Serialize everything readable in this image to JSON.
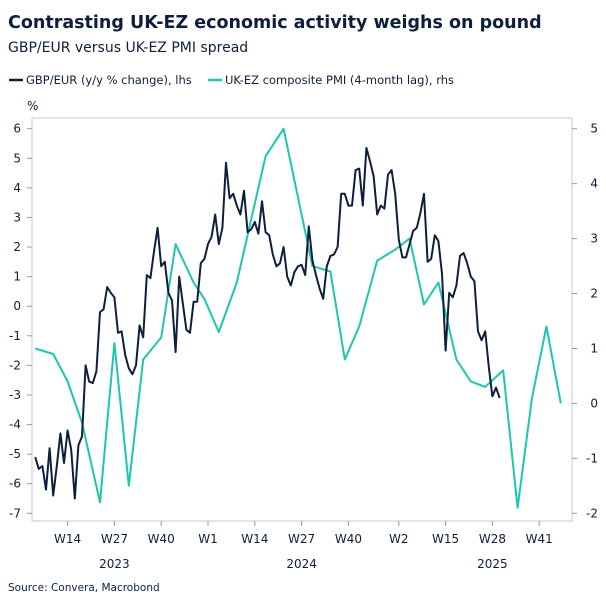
{
  "chart_data": {
    "type": "line",
    "title": "Contrasting UK-EZ economic activity weighs on pound",
    "subtitle": "GBP/EUR versus UK-EZ PMI spread",
    "source": "Source: Convera, Macrobond",
    "left_axis": {
      "unit_label": "%",
      "ylim": [
        -7,
        6
      ],
      "ticks": [
        "6",
        "5",
        "4",
        "3",
        "2",
        "1",
        "0",
        "-1",
        "-2",
        "-3",
        "-4",
        "-5",
        "-6",
        "-7"
      ]
    },
    "right_axis": {
      "ylim": [
        -2,
        5
      ],
      "ticks": [
        "5",
        "4",
        "3",
        "2",
        "1",
        "0",
        "-1",
        "-2"
      ]
    },
    "x_axis": {
      "week_ticks": [
        {
          "label": "W14",
          "x": "2023-W14"
        },
        {
          "label": "W27",
          "x": "2023-W27"
        },
        {
          "label": "W40",
          "x": "2023-W40"
        },
        {
          "label": "W1",
          "x": "2024-W01"
        },
        {
          "label": "W14",
          "x": "2024-W14"
        },
        {
          "label": "W27",
          "x": "2024-W27"
        },
        {
          "label": "W40",
          "x": "2024-W40"
        },
        {
          "label": "W2",
          "x": "2025-W02"
        },
        {
          "label": "W15",
          "x": "2025-W15"
        },
        {
          "label": "W28",
          "x": "2025-W28"
        },
        {
          "label": "W41",
          "x": "2025-W41"
        }
      ],
      "year_labels": [
        {
          "label": "2023",
          "x": "2023-W27"
        },
        {
          "label": "2024",
          "x": "2024-W27"
        },
        {
          "label": "2025",
          "x": "2025-W28"
        }
      ]
    },
    "grid": false,
    "legend_placement": "top-left",
    "series": [
      {
        "name": "GBP/EUR (y/y % change), lhs",
        "axis": "left",
        "color": "#0d1f3c",
        "points": [
          [
            "2023-W05",
            -5.1
          ],
          [
            "2023-W06",
            -5.5
          ],
          [
            "2023-W07",
            -5.4
          ],
          [
            "2023-W08",
            -6.2
          ],
          [
            "2023-W09",
            -4.8
          ],
          [
            "2023-W10",
            -6.4
          ],
          [
            "2023-W11",
            -5.4
          ],
          [
            "2023-W12",
            -4.3
          ],
          [
            "2023-W13",
            -5.3
          ],
          [
            "2023-W14",
            -4.2
          ],
          [
            "2023-W15",
            -4.85
          ],
          [
            "2023-W16",
            -6.5
          ],
          [
            "2023-W17",
            -4.7
          ],
          [
            "2023-W18",
            -4.4
          ],
          [
            "2023-W19",
            -2.0
          ],
          [
            "2023-W20",
            -2.55
          ],
          [
            "2023-W21",
            -2.6
          ],
          [
            "2023-W22",
            -2.2
          ],
          [
            "2023-W23",
            -0.2
          ],
          [
            "2023-W24",
            -0.1
          ],
          [
            "2023-W25",
            0.65
          ],
          [
            "2023-W26",
            0.45
          ],
          [
            "2023-W27",
            0.3
          ],
          [
            "2023-W28",
            -0.9
          ],
          [
            "2023-W29",
            -0.85
          ],
          [
            "2023-W30",
            -1.65
          ],
          [
            "2023-W31",
            -2.1
          ],
          [
            "2023-W32",
            -2.3
          ],
          [
            "2023-W33",
            -2.0
          ],
          [
            "2023-W34",
            -0.65
          ],
          [
            "2023-W35",
            -1.05
          ],
          [
            "2023-W36",
            1.05
          ],
          [
            "2023-W37",
            0.95
          ],
          [
            "2023-W38",
            1.85
          ],
          [
            "2023-W39",
            2.65
          ],
          [
            "2023-W40",
            1.35
          ],
          [
            "2023-W41",
            1.5
          ],
          [
            "2023-W42",
            0.45
          ],
          [
            "2023-W43",
            0.2
          ],
          [
            "2023-W44",
            -1.55
          ],
          [
            "2023-W45",
            1.0
          ],
          [
            "2023-W46",
            0.1
          ],
          [
            "2023-W47",
            -0.8
          ],
          [
            "2023-W48",
            -0.9
          ],
          [
            "2023-W49",
            0.15
          ],
          [
            "2023-W50",
            0.15
          ],
          [
            "2023-W51",
            1.45
          ],
          [
            "2023-W52",
            1.6
          ],
          [
            "2024-W01",
            2.1
          ],
          [
            "2024-W02",
            2.35
          ],
          [
            "2024-W03",
            3.1
          ],
          [
            "2024-W04",
            2.1
          ],
          [
            "2024-W05",
            2.65
          ],
          [
            "2024-W06",
            4.85
          ],
          [
            "2024-W07",
            3.65
          ],
          [
            "2024-W08",
            3.8
          ],
          [
            "2024-W09",
            3.4
          ],
          [
            "2024-W10",
            3.1
          ],
          [
            "2024-W11",
            3.9
          ],
          [
            "2024-W12",
            2.5
          ],
          [
            "2024-W13",
            2.6
          ],
          [
            "2024-W14",
            2.85
          ],
          [
            "2024-W15",
            2.45
          ],
          [
            "2024-W16",
            3.55
          ],
          [
            "2024-W17",
            2.5
          ],
          [
            "2024-W18",
            2.4
          ],
          [
            "2024-W19",
            1.75
          ],
          [
            "2024-W20",
            1.35
          ],
          [
            "2024-W21",
            1.45
          ],
          [
            "2024-W22",
            2.0
          ],
          [
            "2024-W23",
            1.0
          ],
          [
            "2024-W24",
            0.7
          ],
          [
            "2024-W25",
            1.15
          ],
          [
            "2024-W26",
            1.35
          ],
          [
            "2024-W27",
            1.4
          ],
          [
            "2024-W28",
            1.05
          ],
          [
            "2024-W29",
            2.7
          ],
          [
            "2024-W30",
            1.55
          ],
          [
            "2024-W31",
            1.05
          ],
          [
            "2024-W32",
            0.6
          ],
          [
            "2024-W33",
            0.25
          ],
          [
            "2024-W34",
            1.35
          ],
          [
            "2024-W35",
            1.7
          ],
          [
            "2024-W36",
            1.75
          ],
          [
            "2024-W37",
            2.0
          ],
          [
            "2024-W38",
            3.8
          ],
          [
            "2024-W39",
            3.8
          ],
          [
            "2024-W40",
            3.4
          ],
          [
            "2024-W41",
            3.4
          ],
          [
            "2024-W42",
            4.6
          ],
          [
            "2024-W43",
            4.65
          ],
          [
            "2024-W44",
            3.4
          ],
          [
            "2024-W45",
            5.35
          ],
          [
            "2024-W46",
            4.9
          ],
          [
            "2024-W47",
            4.4
          ],
          [
            "2024-W48",
            3.1
          ],
          [
            "2024-W49",
            3.4
          ],
          [
            "2024-W50",
            3.3
          ],
          [
            "2024-W51",
            4.45
          ],
          [
            "2024-W52",
            4.6
          ],
          [
            "2025-W01",
            3.8
          ],
          [
            "2025-W02",
            2.25
          ],
          [
            "2025-W03",
            1.65
          ],
          [
            "2025-W04",
            1.65
          ],
          [
            "2025-W05",
            2.1
          ],
          [
            "2025-W06",
            2.55
          ],
          [
            "2025-W07",
            2.65
          ],
          [
            "2025-W08",
            3.15
          ],
          [
            "2025-W09",
            3.8
          ],
          [
            "2025-W10",
            1.5
          ],
          [
            "2025-W11",
            1.6
          ],
          [
            "2025-W12",
            2.4
          ],
          [
            "2025-W13",
            2.2
          ],
          [
            "2025-W14",
            1.1
          ],
          [
            "2025-W15",
            -1.5
          ],
          [
            "2025-W16",
            0.45
          ],
          [
            "2025-W17",
            0.3
          ],
          [
            "2025-W18",
            0.7
          ],
          [
            "2025-W19",
            1.7
          ],
          [
            "2025-W20",
            1.8
          ],
          [
            "2025-W21",
            1.45
          ],
          [
            "2025-W22",
            1.0
          ],
          [
            "2025-W23",
            0.85
          ],
          [
            "2025-W24",
            -0.85
          ],
          [
            "2025-W25",
            -1.15
          ],
          [
            "2025-W26",
            -0.85
          ],
          [
            "2025-W27",
            -2.05
          ],
          [
            "2025-W28",
            -3.05
          ],
          [
            "2025-W29",
            -2.75
          ],
          [
            "2025-W30",
            -3.1
          ]
        ]
      },
      {
        "name": "UK-EZ composite PMI (4-month lag), rhs",
        "axis": "right",
        "color": "#1cc7ae",
        "points": [
          [
            "2023-W05",
            1.0
          ],
          [
            "2023-W10",
            0.9
          ],
          [
            "2023-W14",
            0.4
          ],
          [
            "2023-W18",
            -0.35
          ],
          [
            "2023-W23",
            -1.8
          ],
          [
            "2023-W27",
            1.1
          ],
          [
            "2023-W31",
            -1.5
          ],
          [
            "2023-W35",
            0.8
          ],
          [
            "2023-W40",
            1.2
          ],
          [
            "2023-W44",
            2.9
          ],
          [
            "2023-W49",
            2.2
          ],
          [
            "2023-W52",
            1.9
          ],
          [
            "2024-W04",
            1.3
          ],
          [
            "2024-W09",
            2.2
          ],
          [
            "2024-W17",
            4.5
          ],
          [
            "2024-W22",
            5.0
          ],
          [
            "2024-W30",
            2.5
          ],
          [
            "2024-W35",
            2.4
          ],
          [
            "2024-W39",
            0.8
          ],
          [
            "2024-W43",
            1.4
          ],
          [
            "2024-W48",
            2.6
          ],
          [
            "2025-W01",
            2.8
          ],
          [
            "2025-W05",
            3.0
          ],
          [
            "2025-W09",
            1.8
          ],
          [
            "2025-W13",
            2.2
          ],
          [
            "2025-W18",
            0.8
          ],
          [
            "2025-W22",
            0.4
          ],
          [
            "2025-W26",
            0.3
          ],
          [
            "2025-W31",
            0.6
          ],
          [
            "2025-W35",
            -1.9
          ],
          [
            "2025-W39",
            0.1
          ],
          [
            "2025-W43",
            1.4
          ],
          [
            "2025-W47",
            0.0
          ]
        ]
      }
    ]
  }
}
